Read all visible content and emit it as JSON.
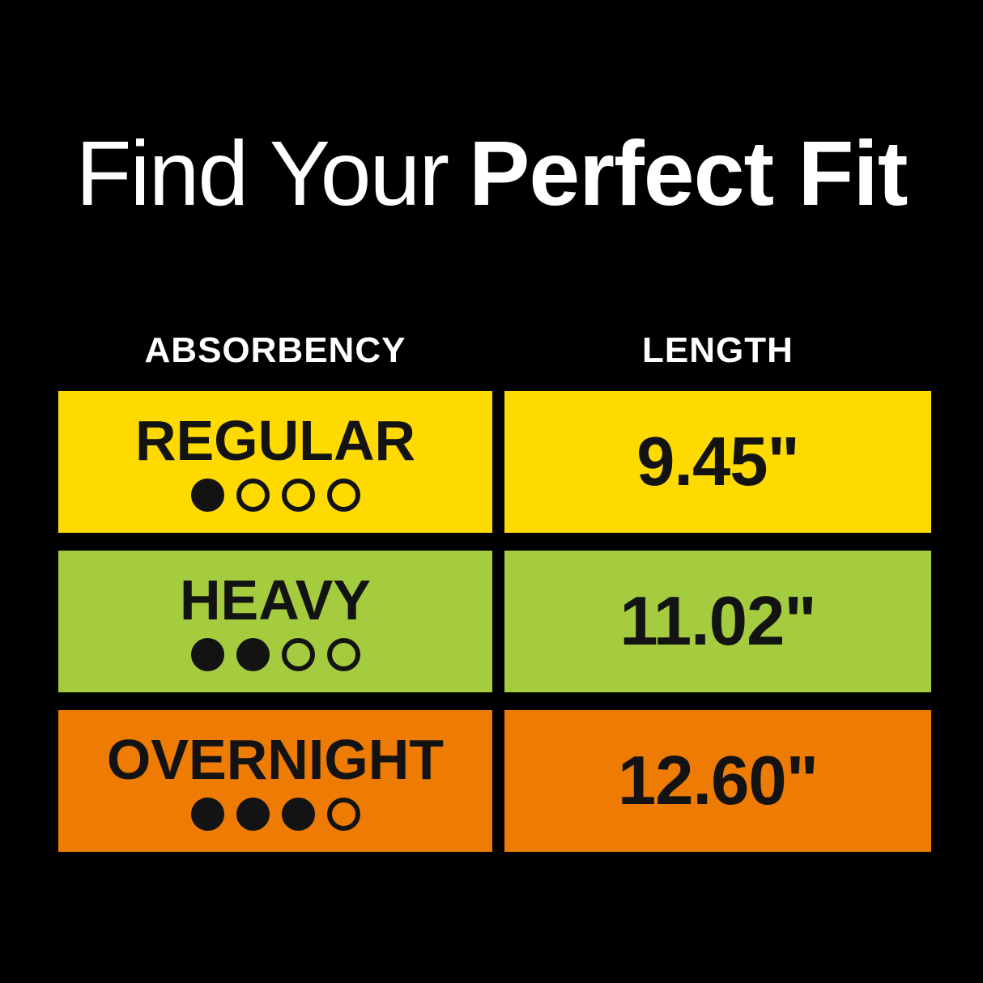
{
  "title": {
    "prefix": "Find Your",
    "emphasis": "Perfect Fit"
  },
  "headers": {
    "absorbency": "ABSORBENCY",
    "length": "LENGTH"
  },
  "rows": [
    {
      "name": "REGULAR",
      "dots": [
        1,
        0,
        0,
        0
      ],
      "length": "9.45\"",
      "color": "#FFDA00"
    },
    {
      "name": "HEAVY",
      "dots": [
        1,
        1,
        0,
        0
      ],
      "length": "11.02\"",
      "color": "#A5CC3F"
    },
    {
      "name": "OVERNIGHT",
      "dots": [
        1,
        1,
        1,
        0
      ],
      "length": "12.60\"",
      "color": "#EE7B04"
    }
  ],
  "colors": {
    "background": "#000000",
    "text_light": "#FFFFFF",
    "text_dark": "#131313",
    "row_regular": "#FFDA00",
    "row_heavy": "#A5CC3F",
    "row_overnight": "#EE7B04"
  },
  "chart_data": {
    "type": "table",
    "title": "Find Your Perfect Fit",
    "columns": [
      "ABSORBENCY",
      "LENGTH"
    ],
    "rows": [
      {
        "absorbency": "REGULAR",
        "absorbency_level": 1,
        "absorbency_scale_max": 4,
        "length_inches": 9.45
      },
      {
        "absorbency": "HEAVY",
        "absorbency_level": 2,
        "absorbency_scale_max": 4,
        "length_inches": 11.02
      },
      {
        "absorbency": "OVERNIGHT",
        "absorbency_level": 3,
        "absorbency_scale_max": 4,
        "length_inches": 12.6
      }
    ],
    "legend_position": "none",
    "grid": false
  }
}
